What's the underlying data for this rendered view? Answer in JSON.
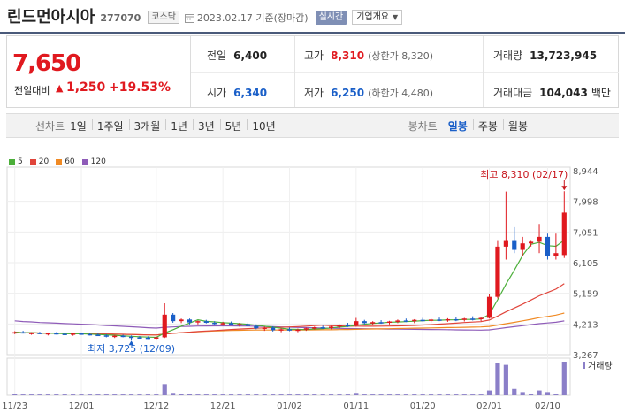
{
  "header": {
    "company_name": "린드먼아시아",
    "code": "277070",
    "market": "코스닥",
    "date_text": "2023.02.17 기준(장마감)",
    "realtime_label": "실시간",
    "corp_info_label": "기업개요"
  },
  "quote": {
    "price": "7,650",
    "change_label": "전일대비",
    "change_value": "1,250",
    "change_pct": "+19.53%",
    "prev_close_label": "전일",
    "prev_close": "6,400",
    "high_label": "고가",
    "high": "8,310",
    "upper_limit": "(상한가 8,320)",
    "volume_label": "거래량",
    "volume": "13,723,945",
    "open_label": "시가",
    "open": "6,340",
    "low_label": "저가",
    "low": "6,250",
    "lower_limit": "(하한가 4,480)",
    "amount_label": "거래대금",
    "amount": "104,043",
    "amount_unit": "백만"
  },
  "periods": {
    "line_label": "선차트",
    "line_items": [
      "1일",
      "1주일",
      "3개월",
      "1년",
      "3년",
      "5년",
      "10년"
    ],
    "candle_label": "봉차트",
    "candle_items": [
      "일봉",
      "주봉",
      "월봉"
    ],
    "candle_active": "일봉"
  },
  "colors": {
    "up": "#e0191f",
    "down": "#1a5fc8",
    "ma5": "#4caf3a",
    "ma20": "#e0443a",
    "ma60": "#f08a24",
    "ma120": "#8e5bb8",
    "volume": "#8b7fc8"
  },
  "chart_data": {
    "type": "candlestick",
    "legend": [
      "5",
      "20",
      "60",
      "120"
    ],
    "y_ticks": [
      "8,944",
      "7,998",
      "7,051",
      "6,105",
      "5,159",
      "4,213",
      "3,267"
    ],
    "ylim": [
      3267,
      8944
    ],
    "x_ticks": [
      "11/23",
      "12/01",
      "12/12",
      "12/21",
      "01/02",
      "01/11",
      "01/20",
      "02/01",
      "02/10"
    ],
    "high_annotation": "최고 8,310 (02/17)",
    "low_annotation": "최저 3,725 (12/09)",
    "volume_label": "거래량",
    "candles": [
      [
        3950,
        3990,
        3900,
        3960
      ],
      [
        3960,
        4000,
        3920,
        3930
      ],
      [
        3930,
        3960,
        3880,
        3940
      ],
      [
        3940,
        3970,
        3900,
        3900
      ],
      [
        3900,
        3950,
        3860,
        3930
      ],
      [
        3930,
        3960,
        3890,
        3910
      ],
      [
        3910,
        3950,
        3870,
        3890
      ],
      [
        3890,
        3930,
        3850,
        3920
      ],
      [
        3920,
        3950,
        3880,
        3900
      ],
      [
        3900,
        3930,
        3860,
        3880
      ],
      [
        3880,
        3920,
        3840,
        3860
      ],
      [
        3860,
        3900,
        3800,
        3830
      ],
      [
        3830,
        3870,
        3780,
        3850
      ],
      [
        3850,
        3880,
        3800,
        3820
      ],
      [
        3820,
        3860,
        3725,
        3800
      ],
      [
        3800,
        3840,
        3760,
        3790
      ],
      [
        3790,
        3830,
        3750,
        3780
      ],
      [
        3780,
        3820,
        3740,
        3800
      ],
      [
        3800,
        4850,
        3780,
        4500
      ],
      [
        4500,
        4550,
        4250,
        4300
      ],
      [
        4300,
        4380,
        4240,
        4350
      ],
      [
        4350,
        4380,
        4200,
        4260
      ],
      [
        4260,
        4320,
        4200,
        4300
      ],
      [
        4300,
        4340,
        4230,
        4250
      ],
      [
        4250,
        4300,
        4180,
        4220
      ],
      [
        4220,
        4280,
        4160,
        4240
      ],
      [
        4240,
        4290,
        4170,
        4190
      ],
      [
        4190,
        4250,
        4130,
        4210
      ],
      [
        4210,
        4260,
        4130,
        4150
      ],
      [
        4150,
        4200,
        4050,
        4080
      ],
      [
        4080,
        4130,
        4000,
        4100
      ],
      [
        4100,
        4140,
        3980,
        4020
      ],
      [
        4020,
        4080,
        3960,
        4050
      ],
      [
        4050,
        4100,
        3990,
        4010
      ],
      [
        4010,
        4070,
        3960,
        4040
      ],
      [
        4040,
        4100,
        4000,
        4080
      ],
      [
        4080,
        4130,
        4040,
        4110
      ],
      [
        4110,
        4160,
        4060,
        4090
      ],
      [
        4090,
        4150,
        4050,
        4130
      ],
      [
        4130,
        4200,
        4080,
        4180
      ],
      [
        4180,
        4250,
        4120,
        4160
      ],
      [
        4160,
        4400,
        4130,
        4300
      ],
      [
        4300,
        4340,
        4200,
        4240
      ],
      [
        4240,
        4300,
        4190,
        4270
      ],
      [
        4270,
        4330,
        4220,
        4250
      ],
      [
        4250,
        4310,
        4200,
        4290
      ],
      [
        4290,
        4350,
        4240,
        4320
      ],
      [
        4320,
        4380,
        4270,
        4300
      ],
      [
        4300,
        4360,
        4240,
        4340
      ],
      [
        4340,
        4400,
        4290,
        4320
      ],
      [
        4320,
        4380,
        4260,
        4350
      ],
      [
        4350,
        4410,
        4300,
        4330
      ],
      [
        4330,
        4390,
        4280,
        4360
      ],
      [
        4360,
        4420,
        4300,
        4340
      ],
      [
        4340,
        4400,
        4290,
        4380
      ],
      [
        4380,
        4450,
        4320,
        4360
      ],
      [
        4360,
        4420,
        4300,
        4400
      ],
      [
        4400,
        5150,
        4380,
        5050
      ],
      [
        5050,
        6800,
        5000,
        6600
      ],
      [
        6600,
        8300,
        6200,
        6800
      ],
      [
        6800,
        7200,
        6400,
        6500
      ],
      [
        6500,
        6900,
        6300,
        6700
      ],
      [
        6700,
        6800,
        6600,
        6750
      ],
      [
        6750,
        7300,
        6400,
        6900
      ],
      [
        6900,
        7000,
        6200,
        6300
      ],
      [
        6300,
        7000,
        6200,
        6400
      ],
      [
        6340,
        8310,
        6250,
        7650
      ]
    ],
    "volume_values": [
      2,
      1,
      1,
      1,
      1,
      1,
      1,
      1,
      1,
      1,
      1,
      1,
      1,
      1,
      1,
      1,
      1,
      1,
      14,
      3,
      2,
      2,
      1,
      1,
      1,
      1,
      1,
      1,
      1,
      1,
      1,
      1,
      1,
      1,
      1,
      1,
      1,
      1,
      1,
      1,
      1,
      3,
      1,
      1,
      1,
      1,
      1,
      1,
      1,
      1,
      1,
      1,
      1,
      1,
      1,
      1,
      1,
      6,
      40,
      38,
      8,
      4,
      2,
      6,
      4,
      2,
      42
    ]
  }
}
